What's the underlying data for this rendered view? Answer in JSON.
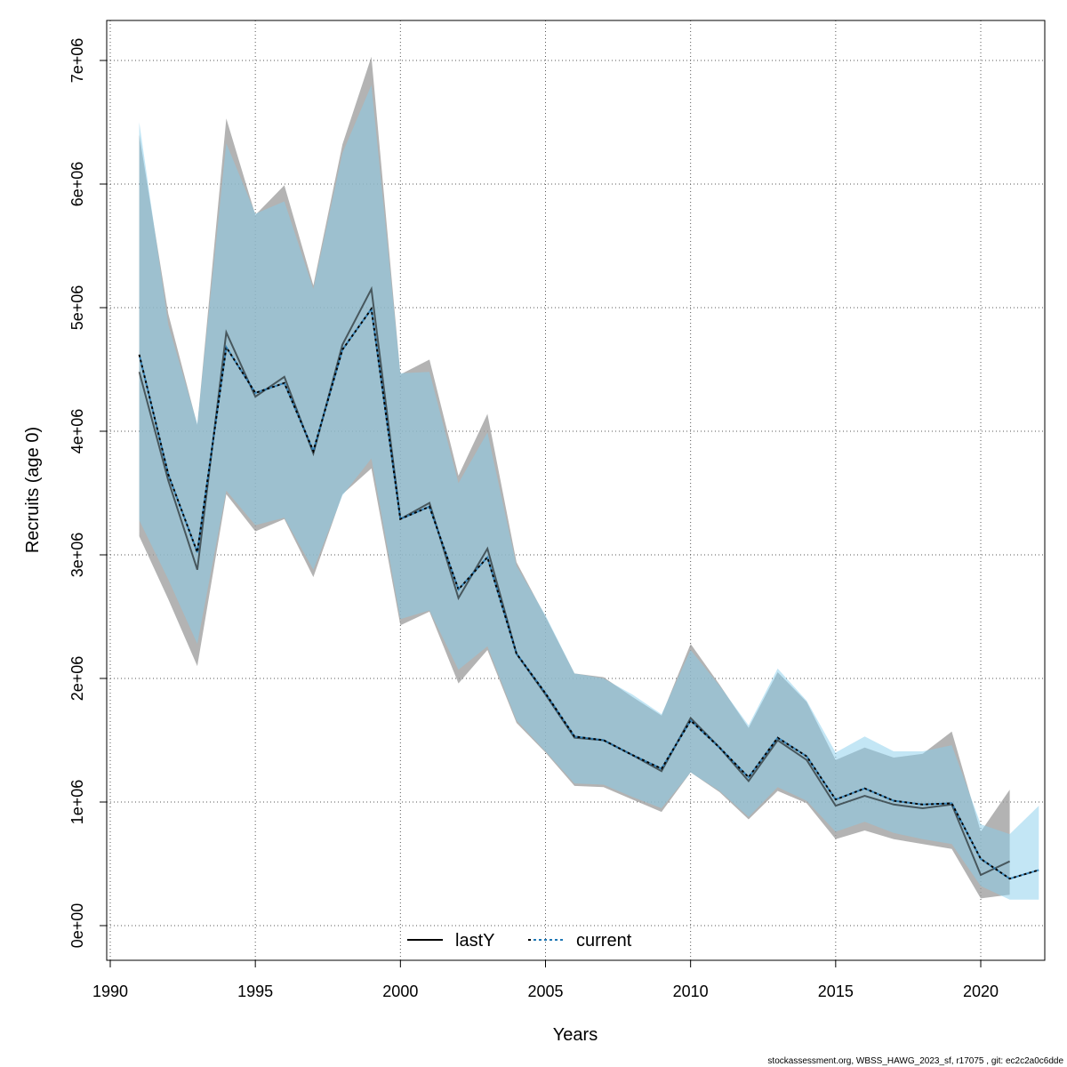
{
  "chart_data": {
    "type": "line",
    "xlabel": "Years",
    "ylabel": "Recruits (age 0)",
    "xlim": [
      1990,
      2022
    ],
    "ylim": [
      0,
      7000000
    ],
    "x_ticks": [
      1990,
      1995,
      2000,
      2005,
      2010,
      2015,
      2020
    ],
    "x_tick_labels": [
      "1990",
      "1995",
      "2000",
      "2005",
      "2010",
      "2015",
      "2020"
    ],
    "y_ticks": [
      0,
      1000000,
      2000000,
      3000000,
      4000000,
      5000000,
      6000000,
      7000000
    ],
    "y_tick_labels": [
      "0e+00",
      "1e+06",
      "2e+06",
      "3e+06",
      "4e+06",
      "5e+06",
      "6e+06",
      "7e+06"
    ],
    "grid": true,
    "legend_position": "bottom-center",
    "colors": {
      "lastY_line": "#000000",
      "lastY_band": "#999999",
      "current_line": "#000000",
      "current_dash_accent": "#1f77b4",
      "current_band": "#87CEEB"
    },
    "series": [
      {
        "name": "lastY",
        "style": "solid",
        "x": [
          1991,
          1992,
          1993,
          1994,
          1995,
          1996,
          1997,
          1998,
          1999,
          2000,
          2001,
          2002,
          2003,
          2004,
          2005,
          2006,
          2007,
          2008,
          2009,
          2010,
          2011,
          2012,
          2013,
          2014,
          2015,
          2016,
          2017,
          2018,
          2019,
          2020,
          2021
        ],
        "values": [
          4480000,
          3600000,
          2880000,
          4800000,
          4280000,
          4440000,
          3820000,
          4700000,
          5150000,
          3290000,
          3420000,
          2650000,
          3050000,
          2200000,
          1870000,
          1520000,
          1500000,
          1380000,
          1250000,
          1680000,
          1440000,
          1170000,
          1500000,
          1340000,
          970000,
          1050000,
          980000,
          950000,
          980000,
          410000,
          520000
        ],
        "lower": [
          3150000,
          2640000,
          2100000,
          3490000,
          3190000,
          3290000,
          2820000,
          3490000,
          3700000,
          2430000,
          2540000,
          1960000,
          2230000,
          1640000,
          1400000,
          1130000,
          1120000,
          1020000,
          920000,
          1240000,
          1080000,
          860000,
          1090000,
          990000,
          700000,
          770000,
          700000,
          660000,
          620000,
          220000,
          250000
        ],
        "upper": [
          6400000,
          4950000,
          4050000,
          6530000,
          5750000,
          5990000,
          5180000,
          6320000,
          7030000,
          4460000,
          4580000,
          3640000,
          4140000,
          2940000,
          2500000,
          2040000,
          2010000,
          1850000,
          1700000,
          2280000,
          1950000,
          1600000,
          2050000,
          1810000,
          1340000,
          1440000,
          1360000,
          1390000,
          1570000,
          760000,
          1100000
        ]
      },
      {
        "name": "current",
        "style": "dashed",
        "x": [
          1991,
          1992,
          1993,
          1994,
          1995,
          1996,
          1997,
          1998,
          1999,
          2000,
          2001,
          2002,
          2003,
          2004,
          2005,
          2006,
          2007,
          2008,
          2009,
          2010,
          2011,
          2012,
          2013,
          2014,
          2015,
          2016,
          2017,
          2018,
          2019,
          2020,
          2021,
          2022
        ],
        "values": [
          4620000,
          3650000,
          3020000,
          4680000,
          4310000,
          4390000,
          3840000,
          4660000,
          4990000,
          3290000,
          3390000,
          2720000,
          2980000,
          2200000,
          1880000,
          1530000,
          1500000,
          1380000,
          1270000,
          1660000,
          1440000,
          1200000,
          1520000,
          1370000,
          1020000,
          1110000,
          1010000,
          980000,
          990000,
          540000,
          380000,
          450000
        ],
        "lower": [
          3280000,
          2800000,
          2280000,
          3520000,
          3240000,
          3300000,
          2880000,
          3480000,
          3780000,
          2480000,
          2550000,
          2070000,
          2260000,
          1660000,
          1410000,
          1150000,
          1140000,
          1040000,
          950000,
          1240000,
          1090000,
          880000,
          1120000,
          1010000,
          760000,
          840000,
          750000,
          700000,
          660000,
          320000,
          210000,
          210000
        ],
        "upper": [
          6500000,
          4860000,
          4060000,
          6330000,
          5760000,
          5860000,
          5150000,
          6250000,
          6800000,
          4470000,
          4480000,
          3580000,
          3990000,
          2910000,
          2510000,
          2040000,
          2000000,
          1870000,
          1710000,
          2230000,
          1940000,
          1620000,
          2080000,
          1820000,
          1400000,
          1530000,
          1410000,
          1410000,
          1460000,
          820000,
          740000,
          970000
        ]
      }
    ]
  },
  "footer": "stockassessment.org, WBSS_HAWG_2023_sf, r17075 , git: ec2c2a0c6dde"
}
